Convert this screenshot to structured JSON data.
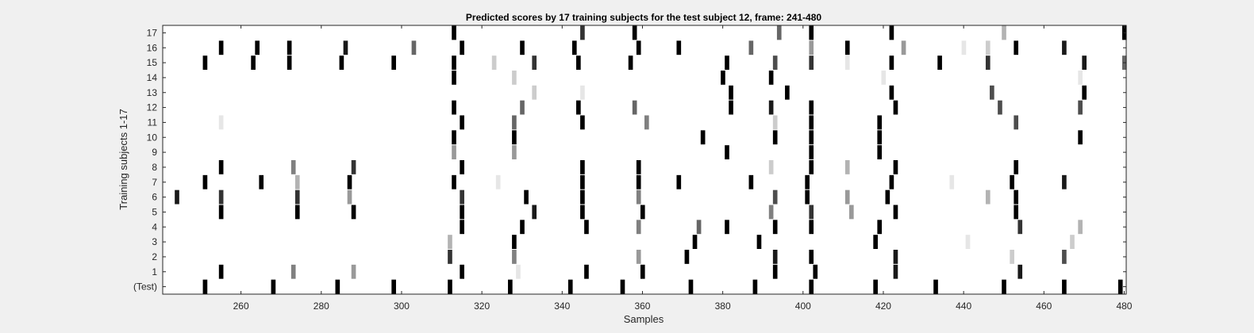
{
  "chart_data": {
    "type": "heatmap",
    "title": "Predicted scores by 17 training subjects for the test subject 12, frame: 241-480",
    "xlabel": "Samples",
    "ylabel": "Training subjects 1-17",
    "xlim": [
      241,
      480
    ],
    "x_ticks": [
      260,
      280,
      300,
      320,
      340,
      360,
      380,
      400,
      420,
      440,
      460,
      480
    ],
    "y_rows": [
      "(Test)",
      "1",
      "2",
      "3",
      "4",
      "5",
      "6",
      "7",
      "8",
      "9",
      "10",
      "11",
      "12",
      "13",
      "14",
      "15",
      "16",
      "17"
    ],
    "colormap": "grayscale: 0 = white, 1 = black",
    "rows": [
      {
        "row": "(Test)",
        "points": [
          [
            251,
            1
          ],
          [
            268,
            1
          ],
          [
            284,
            1
          ],
          [
            298,
            1
          ],
          [
            312,
            1
          ],
          [
            327,
            1
          ],
          [
            342,
            1
          ],
          [
            355,
            1
          ],
          [
            372,
            1
          ],
          [
            388,
            1
          ],
          [
            402,
            1
          ],
          [
            418,
            1
          ],
          [
            433,
            1
          ],
          [
            450,
            1
          ],
          [
            465,
            1
          ],
          [
            479,
            1
          ]
        ]
      },
      {
        "row": "1",
        "points": [
          [
            255,
            1
          ],
          [
            273,
            0.5
          ],
          [
            288,
            0.4
          ],
          [
            315,
            1
          ],
          [
            329,
            0.1
          ],
          [
            346,
            1
          ],
          [
            360,
            1
          ],
          [
            393,
            1
          ],
          [
            403,
            1
          ],
          [
            423,
            0.9
          ],
          [
            454,
            0.9
          ]
        ]
      },
      {
        "row": "2",
        "points": [
          [
            312,
            0.8
          ],
          [
            328,
            0.5
          ],
          [
            359,
            0.4
          ],
          [
            371,
            1
          ],
          [
            393,
            0.9
          ],
          [
            402,
            1
          ],
          [
            423,
            0.9
          ],
          [
            452,
            0.2
          ],
          [
            465,
            0.7
          ]
        ]
      },
      {
        "row": "3",
        "points": [
          [
            312,
            0.3
          ],
          [
            328,
            1
          ],
          [
            373,
            1
          ],
          [
            389,
            1
          ],
          [
            418,
            1
          ],
          [
            441,
            0.1
          ],
          [
            467,
            0.2
          ]
        ]
      },
      {
        "row": "4",
        "points": [
          [
            315,
            1
          ],
          [
            330,
            1
          ],
          [
            346,
            1
          ],
          [
            359,
            0.5
          ],
          [
            374,
            0.6
          ],
          [
            381,
            1
          ],
          [
            393,
            1
          ],
          [
            402,
            1
          ],
          [
            419,
            1
          ],
          [
            454,
            0.8
          ],
          [
            469,
            0.3
          ]
        ]
      },
      {
        "row": "5",
        "points": [
          [
            255,
            1
          ],
          [
            274,
            1
          ],
          [
            288,
            1
          ],
          [
            315,
            1
          ],
          [
            333,
            0.9
          ],
          [
            345,
            1
          ],
          [
            360,
            1
          ],
          [
            392,
            0.5
          ],
          [
            402,
            0.8
          ],
          [
            412,
            0.4
          ],
          [
            423,
            1
          ],
          [
            453,
            1
          ]
        ]
      },
      {
        "row": "6",
        "points": [
          [
            244,
            0.9
          ],
          [
            255,
            0.8
          ],
          [
            274,
            0.8
          ],
          [
            287,
            0.4
          ],
          [
            315,
            0.8
          ],
          [
            331,
            1
          ],
          [
            345,
            1
          ],
          [
            359,
            0.5
          ],
          [
            393,
            0.7
          ],
          [
            401,
            1
          ],
          [
            411,
            0.4
          ],
          [
            421,
            1
          ],
          [
            446,
            0.3
          ],
          [
            453,
            1
          ]
        ]
      },
      {
        "row": "7",
        "points": [
          [
            251,
            1
          ],
          [
            265,
            1
          ],
          [
            274,
            0.3
          ],
          [
            287,
            1
          ],
          [
            313,
            1
          ],
          [
            324,
            0.1
          ],
          [
            345,
            1
          ],
          [
            359,
            1
          ],
          [
            369,
            1
          ],
          [
            387,
            1
          ],
          [
            401,
            1
          ],
          [
            422,
            1
          ],
          [
            437,
            0.1
          ],
          [
            452,
            1
          ],
          [
            465,
            0.9
          ]
        ]
      },
      {
        "row": "8",
        "points": [
          [
            255,
            1
          ],
          [
            273,
            0.5
          ],
          [
            288,
            0.8
          ],
          [
            315,
            1
          ],
          [
            345,
            1
          ],
          [
            359,
            1
          ],
          [
            392,
            0.2
          ],
          [
            402,
            1
          ],
          [
            411,
            0.3
          ],
          [
            423,
            1
          ],
          [
            453,
            1
          ]
        ]
      },
      {
        "row": "9",
        "points": [
          [
            313,
            0.4
          ],
          [
            328,
            0.4
          ],
          [
            381,
            1
          ],
          [
            402,
            1
          ],
          [
            419,
            1
          ]
        ]
      },
      {
        "row": "10",
        "points": [
          [
            313,
            1
          ],
          [
            328,
            1
          ],
          [
            375,
            1
          ],
          [
            393,
            1
          ],
          [
            402,
            1
          ],
          [
            419,
            1
          ],
          [
            469,
            1
          ]
        ]
      },
      {
        "row": "11",
        "points": [
          [
            255,
            0.1
          ],
          [
            315,
            1
          ],
          [
            328,
            0.6
          ],
          [
            345,
            1
          ],
          [
            361,
            0.5
          ],
          [
            393,
            0.2
          ],
          [
            402,
            1
          ],
          [
            419,
            1
          ],
          [
            453,
            0.7
          ]
        ]
      },
      {
        "row": "12",
        "points": [
          [
            313,
            1
          ],
          [
            330,
            0.6
          ],
          [
            344,
            1
          ],
          [
            358,
            0.6
          ],
          [
            382,
            1
          ],
          [
            392,
            0.9
          ],
          [
            402,
            1
          ],
          [
            423,
            1
          ],
          [
            449,
            0.7
          ],
          [
            469,
            0.7
          ]
        ]
      },
      {
        "row": "13",
        "points": [
          [
            333,
            0.2
          ],
          [
            345,
            0.1
          ],
          [
            382,
            1
          ],
          [
            396,
            1
          ],
          [
            422,
            1
          ],
          [
            447,
            0.7
          ],
          [
            470,
            1
          ]
        ]
      },
      {
        "row": "14",
        "points": [
          [
            313,
            1
          ],
          [
            328,
            0.2
          ],
          [
            380,
            1
          ],
          [
            392,
            1
          ],
          [
            420,
            0.1
          ],
          [
            469,
            0.1
          ]
        ]
      },
      {
        "row": "15",
        "points": [
          [
            251,
            1
          ],
          [
            263,
            1
          ],
          [
            272,
            1
          ],
          [
            285,
            1
          ],
          [
            298,
            1
          ],
          [
            313,
            1
          ],
          [
            323,
            0.2
          ],
          [
            333,
            0.8
          ],
          [
            344,
            1
          ],
          [
            357,
            1
          ],
          [
            381,
            1
          ],
          [
            393,
            0.7
          ],
          [
            402,
            0.8
          ],
          [
            411,
            0.1
          ],
          [
            422,
            1
          ],
          [
            434,
            1
          ],
          [
            446,
            0.8
          ],
          [
            470,
            0.9
          ],
          [
            480,
            0.6
          ]
        ]
      },
      {
        "row": "16",
        "points": [
          [
            255,
            1
          ],
          [
            264,
            1
          ],
          [
            272,
            1
          ],
          [
            286,
            0.9
          ],
          [
            303,
            0.6
          ],
          [
            315,
            1
          ],
          [
            330,
            1
          ],
          [
            343,
            1
          ],
          [
            359,
            1
          ],
          [
            369,
            1
          ],
          [
            387,
            0.6
          ],
          [
            402,
            0.4
          ],
          [
            411,
            1
          ],
          [
            425,
            0.4
          ],
          [
            440,
            0.1
          ],
          [
            446,
            0.2
          ],
          [
            453,
            1
          ],
          [
            465,
            0.9
          ]
        ]
      },
      {
        "row": "17",
        "points": [
          [
            313,
            1
          ],
          [
            345,
            0.8
          ],
          [
            358,
            1
          ],
          [
            394,
            0.6
          ],
          [
            402,
            1
          ],
          [
            422,
            1
          ],
          [
            450,
            0.3
          ],
          [
            480,
            1
          ]
        ]
      }
    ]
  }
}
